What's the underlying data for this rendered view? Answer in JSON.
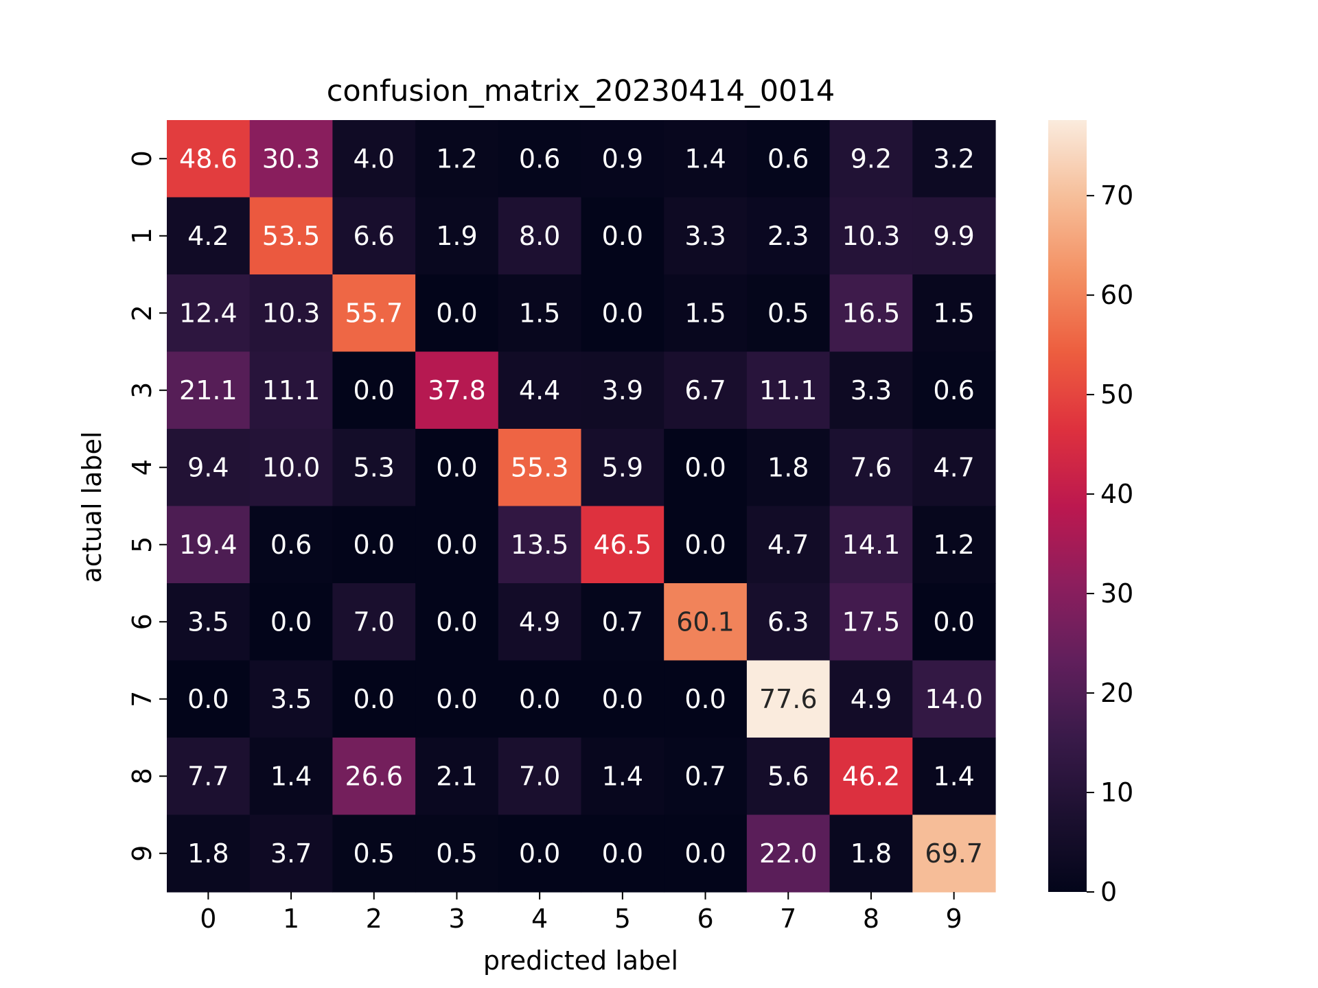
{
  "chart_data": {
    "type": "heatmap",
    "title": "confusion_matrix_20230414_0014",
    "xlabel": "predicted label",
    "ylabel": "actual label",
    "x_categories": [
      "0",
      "1",
      "2",
      "3",
      "4",
      "5",
      "6",
      "7",
      "8",
      "9"
    ],
    "y_categories": [
      "0",
      "1",
      "2",
      "3",
      "4",
      "5",
      "6",
      "7",
      "8",
      "9"
    ],
    "values": [
      [
        48.6,
        30.3,
        4.0,
        1.2,
        0.6,
        0.9,
        1.4,
        0.6,
        9.2,
        3.2
      ],
      [
        4.2,
        53.5,
        6.6,
        1.9,
        8.0,
        0.0,
        3.3,
        2.3,
        10.3,
        9.9
      ],
      [
        12.4,
        10.3,
        55.7,
        0.0,
        1.5,
        0.0,
        1.5,
        0.5,
        16.5,
        1.5
      ],
      [
        21.1,
        11.1,
        0.0,
        37.8,
        4.4,
        3.9,
        6.7,
        11.1,
        3.3,
        0.6
      ],
      [
        9.4,
        10.0,
        5.3,
        0.0,
        55.3,
        5.9,
        0.0,
        1.8,
        7.6,
        4.7
      ],
      [
        19.4,
        0.6,
        0.0,
        0.0,
        13.5,
        46.5,
        0.0,
        4.7,
        14.1,
        1.2
      ],
      [
        3.5,
        0.0,
        7.0,
        0.0,
        4.9,
        0.7,
        60.1,
        6.3,
        17.5,
        0.0
      ],
      [
        0.0,
        3.5,
        0.0,
        0.0,
        0.0,
        0.0,
        0.0,
        77.6,
        4.9,
        14.0
      ],
      [
        7.7,
        1.4,
        26.6,
        2.1,
        7.0,
        1.4,
        0.7,
        5.6,
        46.2,
        1.4
      ],
      [
        1.8,
        3.7,
        0.5,
        0.5,
        0.0,
        0.0,
        0.0,
        22.0,
        1.8,
        69.7
      ]
    ],
    "value_format": "0.1",
    "colormap": "rocket",
    "colorbar": {
      "range": [
        0,
        77.6
      ],
      "ticks": [
        0,
        10,
        20,
        30,
        40,
        50,
        60,
        70
      ],
      "tick_labels": [
        "0",
        "10",
        "20",
        "30",
        "40",
        "50",
        "60",
        "70"
      ],
      "placement": "right"
    },
    "grid": false,
    "text_colors": {
      "on_dark": "#ffffff",
      "on_light": "#262626"
    }
  }
}
